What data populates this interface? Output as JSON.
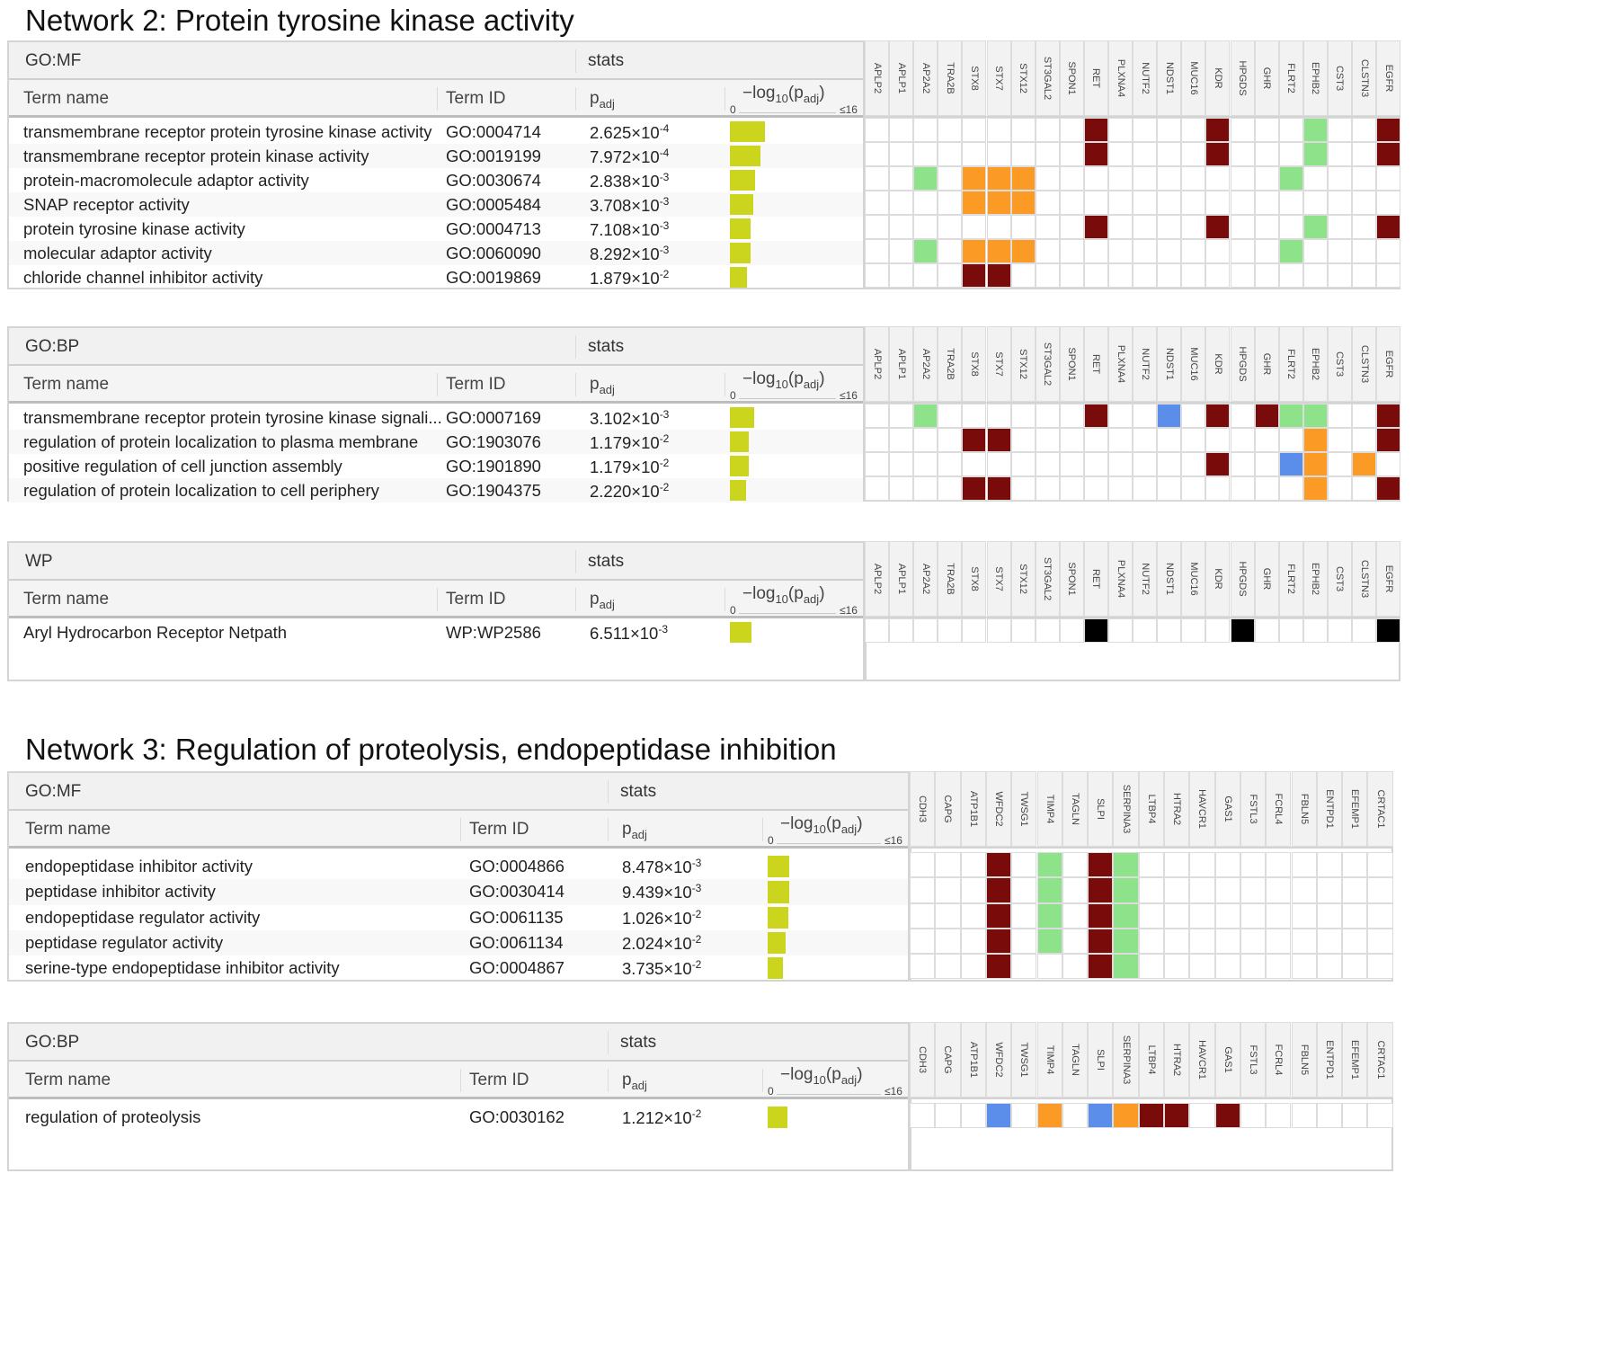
{
  "colors": {
    "dark_red": "#7a0b0b",
    "green": "#8ee28a",
    "orange": "#fb9a25",
    "blue": "#5b8dea",
    "black": "#000000",
    "bar_yellow": "#cbd51d"
  },
  "networks": [
    {
      "title": "Network 2: Protein tyrosine kinase activity",
      "genes": [
        "APLP2",
        "APLP1",
        "AP2A2",
        "TRA2B",
        "STX8",
        "STX7",
        "STX12",
        "ST3GAL2",
        "SPON1",
        "RET",
        "PLXNA4",
        "NUTF2",
        "NDST1",
        "MUC16",
        "KDR",
        "HPGDS",
        "GHR",
        "FLRT2",
        "EPHB2",
        "CST3",
        "CLSTN3",
        "EGFR"
      ],
      "panels": [
        {
          "source": "GO:MF",
          "stats_label": "stats",
          "col_term_name": "Term name",
          "col_term_id": "Term ID",
          "col_padj": "p",
          "col_padj_sub": "adj",
          "col_log": "−log",
          "col_log_sub1": "10",
          "col_log_mid": "(p",
          "col_log_sub2": "adj",
          "col_log_end": ")",
          "axis_min": "0",
          "axis_max": "≤16",
          "rows": [
            {
              "name": "transmembrane receptor protein tyrosine kinase activity",
              "id": "GO:0004714",
              "p_mant": "2.625",
              "p_exp": "-4",
              "neglog": 3.58,
              "cells": {
                "RET": "dark_red",
                "KDR": "dark_red",
                "EPHB2": "green",
                "EGFR": "dark_red"
              }
            },
            {
              "name": "transmembrane receptor protein kinase activity",
              "id": "GO:0019199",
              "p_mant": "7.972",
              "p_exp": "-4",
              "neglog": 3.1,
              "cells": {
                "RET": "dark_red",
                "KDR": "dark_red",
                "EPHB2": "green",
                "EGFR": "dark_red"
              }
            },
            {
              "name": "protein-macromolecule adaptor activity",
              "id": "GO:0030674",
              "p_mant": "2.838",
              "p_exp": "-3",
              "neglog": 2.55,
              "cells": {
                "AP2A2": "green",
                "STX8": "orange",
                "STX7": "orange",
                "STX12": "orange",
                "FLRT2": "green"
              }
            },
            {
              "name": "SNAP receptor activity",
              "id": "GO:0005484",
              "p_mant": "3.708",
              "p_exp": "-3",
              "neglog": 2.43,
              "cells": {
                "STX8": "orange",
                "STX7": "orange",
                "STX12": "orange"
              }
            },
            {
              "name": "protein tyrosine kinase activity",
              "id": "GO:0004713",
              "p_mant": "7.108",
              "p_exp": "-3",
              "neglog": 2.15,
              "cells": {
                "RET": "dark_red",
                "KDR": "dark_red",
                "EPHB2": "green",
                "EGFR": "dark_red"
              }
            },
            {
              "name": "molecular adaptor activity",
              "id": "GO:0060090",
              "p_mant": "8.292",
              "p_exp": "-3",
              "neglog": 2.08,
              "cells": {
                "AP2A2": "green",
                "STX8": "orange",
                "STX7": "orange",
                "STX12": "orange",
                "FLRT2": "green"
              }
            },
            {
              "name": "chloride channel inhibitor activity",
              "id": "GO:0019869",
              "p_mant": "1.879",
              "p_exp": "-2",
              "neglog": 1.73,
              "cells": {
                "STX8": "dark_red",
                "STX7": "dark_red"
              }
            }
          ]
        },
        {
          "source": "GO:BP",
          "stats_label": "stats",
          "col_term_name": "Term name",
          "col_term_id": "Term ID",
          "col_padj": "p",
          "col_padj_sub": "adj",
          "col_log": "−log",
          "col_log_sub1": "10",
          "col_log_mid": "(p",
          "col_log_sub2": "adj",
          "col_log_end": ")",
          "axis_min": "0",
          "axis_max": "≤16",
          "rows": [
            {
              "name": "transmembrane receptor protein tyrosine kinase signali...",
              "id": "GO:0007169",
              "p_mant": "3.102",
              "p_exp": "-3",
              "neglog": 2.51,
              "cells": {
                "AP2A2": "green",
                "RET": "dark_red",
                "NDST1": "blue",
                "KDR": "dark_red",
                "GHR": "dark_red",
                "FLRT2": "green",
                "EPHB2": "green",
                "EGFR": "dark_red"
              }
            },
            {
              "name": "regulation of protein localization to plasma membrane",
              "id": "GO:1903076",
              "p_mant": "1.179",
              "p_exp": "-2",
              "neglog": 1.93,
              "cells": {
                "STX8": "dark_red",
                "STX7": "dark_red",
                "EPHB2": "orange",
                "EGFR": "dark_red"
              }
            },
            {
              "name": "positive regulation of cell junction assembly",
              "id": "GO:1901890",
              "p_mant": "1.179",
              "p_exp": "-2",
              "neglog": 1.93,
              "cells": {
                "KDR": "dark_red",
                "FLRT2": "blue",
                "EPHB2": "orange",
                "CLSTN3": "orange"
              }
            },
            {
              "name": "regulation of protein localization to cell periphery",
              "id": "GO:1904375",
              "p_mant": "2.220",
              "p_exp": "-2",
              "neglog": 1.65,
              "cells": {
                "STX8": "dark_red",
                "STX7": "dark_red",
                "EPHB2": "orange",
                "EGFR": "dark_red"
              }
            }
          ]
        },
        {
          "source": "WP",
          "stats_label": "stats",
          "col_term_name": "Term name",
          "col_term_id": "Term ID",
          "col_padj": "p",
          "col_padj_sub": "adj",
          "col_log": "−log",
          "col_log_sub1": "10",
          "col_log_mid": "(p",
          "col_log_sub2": "adj",
          "col_log_end": ")",
          "axis_min": "0",
          "axis_max": "≤16",
          "rows": [
            {
              "name": "Aryl Hydrocarbon Receptor Netpath",
              "id": "WP:WP2586",
              "p_mant": "6.511",
              "p_exp": "-3",
              "neglog": 2.19,
              "cells": {
                "RET": "black",
                "HPGDS": "black",
                "EGFR": "black"
              }
            }
          ]
        }
      ]
    },
    {
      "title": "Network 3: Regulation of proteolysis, endopeptidase inhibition",
      "genes": [
        "CDH3",
        "CAPG",
        "ATP1B1",
        "WFDC2",
        "TWSG1",
        "TIMP4",
        "TAGLN",
        "SLPI",
        "SERPINA3",
        "LTBP4",
        "HTRA2",
        "HAVCR1",
        "GAS1",
        "FSTL3",
        "FCRL4",
        "FBLN5",
        "ENTPD1",
        "EFEMP1",
        "CRTAC1"
      ],
      "panels": [
        {
          "source": "GO:MF",
          "stats_label": "stats",
          "col_term_name": "Term name",
          "col_term_id": "Term ID",
          "col_padj": "p",
          "col_padj_sub": "adj",
          "col_log": "−log",
          "col_log_sub1": "10",
          "col_log_mid": "(p",
          "col_log_sub2": "adj",
          "col_log_end": ")",
          "axis_min": "0",
          "axis_max": "≤16",
          "rows": [
            {
              "name": "endopeptidase inhibitor activity",
              "id": "GO:0004866",
              "p_mant": "8.478",
              "p_exp": "-3",
              "neglog": 2.07,
              "cells": {
                "WFDC2": "dark_red",
                "TIMP4": "green",
                "SLPI": "dark_red",
                "SERPINA3": "green"
              }
            },
            {
              "name": "peptidase inhibitor activity",
              "id": "GO:0030414",
              "p_mant": "9.439",
              "p_exp": "-3",
              "neglog": 2.03,
              "cells": {
                "WFDC2": "dark_red",
                "TIMP4": "green",
                "SLPI": "dark_red",
                "SERPINA3": "green"
              }
            },
            {
              "name": "endopeptidase regulator activity",
              "id": "GO:0061135",
              "p_mant": "1.026",
              "p_exp": "-2",
              "neglog": 1.99,
              "cells": {
                "WFDC2": "dark_red",
                "TIMP4": "green",
                "SLPI": "dark_red",
                "SERPINA3": "green"
              }
            },
            {
              "name": "peptidase regulator activity",
              "id": "GO:0061134",
              "p_mant": "2.024",
              "p_exp": "-2",
              "neglog": 1.69,
              "cells": {
                "WFDC2": "dark_red",
                "TIMP4": "green",
                "SLPI": "dark_red",
                "SERPINA3": "green"
              }
            },
            {
              "name": "serine-type endopeptidase inhibitor activity",
              "id": "GO:0004867",
              "p_mant": "3.735",
              "p_exp": "-2",
              "neglog": 1.43,
              "cells": {
                "WFDC2": "dark_red",
                "SLPI": "dark_red",
                "SERPINA3": "green"
              }
            }
          ]
        },
        {
          "source": "GO:BP",
          "stats_label": "stats",
          "col_term_name": "Term name",
          "col_term_id": "Term ID",
          "col_padj": "p",
          "col_padj_sub": "adj",
          "col_log": "−log",
          "col_log_sub1": "10",
          "col_log_mid": "(p",
          "col_log_sub2": "adj",
          "col_log_end": ")",
          "axis_min": "0",
          "axis_max": "≤16",
          "rows": [
            {
              "name": "regulation of proteolysis",
              "id": "GO:0030162",
              "p_mant": "1.212",
              "p_exp": "-2",
              "neglog": 1.92,
              "cells": {
                "WFDC2": "blue",
                "TIMP4": "orange",
                "SLPI": "blue",
                "SERPINA3": "orange",
                "LTBP4": "dark_red",
                "HTRA2": "dark_red",
                "GAS1": "dark_red"
              }
            }
          ]
        }
      ]
    }
  ]
}
